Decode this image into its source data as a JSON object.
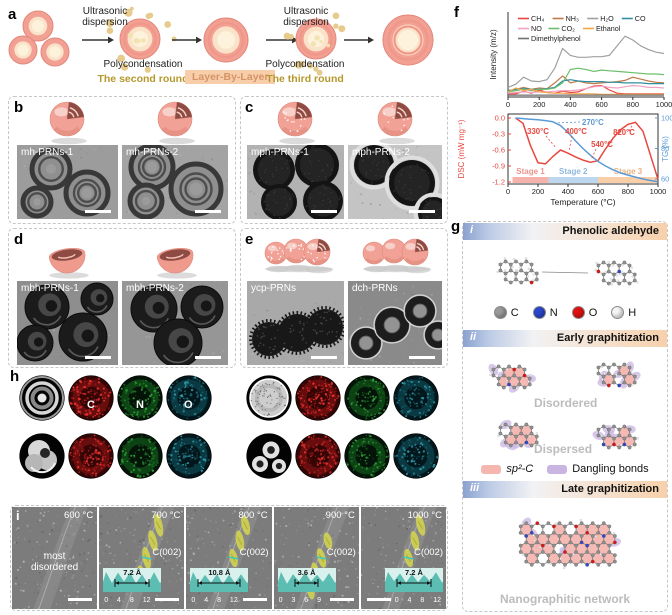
{
  "panels": {
    "a": {
      "label": "a",
      "ultrasonic_1": "Ultrasonic dispersion",
      "polycondensation_1": "Polycondensation",
      "round_2": "The second round",
      "layer_by_layer": "Layer-By-Layer",
      "ultrasonic_2": "Ultrasonic dispersion",
      "polycondensation_2": "Polycondensation",
      "round_3": "The third round"
    },
    "b": {
      "label": "b",
      "images": [
        "mh-PRNs-1",
        "mh-PRNs-2"
      ]
    },
    "c": {
      "label": "c",
      "images": [
        "mph-PRNs-1",
        "mph-PRNs-2"
      ]
    },
    "d": {
      "label": "d",
      "images": [
        "mbh-PRNs-1",
        "mbh-PRNs-2"
      ]
    },
    "e": {
      "label": "e",
      "images": [
        "ycp-PRNs",
        "dch-PRNs"
      ]
    },
    "f": {
      "label": "f"
    },
    "g": {
      "label": "g",
      "sections": [
        {
          "num": "i",
          "title": "Phenolic aldehyde"
        },
        {
          "num": "ii",
          "title": "Early graphitization"
        },
        {
          "num": "iii",
          "title": "Late graphitization"
        }
      ],
      "atoms": [
        {
          "symbol": "C",
          "color": "#9a9a9a"
        },
        {
          "symbol": "N",
          "color": "#2a46cc"
        },
        {
          "symbol": "O",
          "color": "#e01212"
        },
        {
          "symbol": "H",
          "color": "#f5f5f5"
        }
      ],
      "disordered_label": "Disordered",
      "dispersed_label": "Dispersed",
      "sp2_label": "sp²-C",
      "sp2_color": "#f6b6b0",
      "dangling_label": "Dangling bonds",
      "dangling_color": "#c9b5e2",
      "network_label": "Nanographitic network"
    },
    "h": {
      "label": "h",
      "element_labels": [
        "C",
        "N",
        "O"
      ]
    },
    "i": {
      "label": "i",
      "frames": [
        {
          "temp": "600 °C",
          "note": "most disordered"
        },
        {
          "temp": "700 °C",
          "plane": "C(002)",
          "inset_value": "7.2 Å",
          "inset_ticks": "0 4 8 12"
        },
        {
          "temp": "800 °C",
          "plane": "C(002)",
          "inset_value": "10.8 Å",
          "inset_ticks": "0 4 8 12"
        },
        {
          "temp": "900 °C",
          "plane": "C(002)",
          "inset_value": "3.6 Å",
          "inset_ticks": "0 3 6 9"
        },
        {
          "temp": "1000 °C",
          "plane": "C(002)",
          "inset_value": "7.2 Å",
          "inset_ticks": "0 4 8 12"
        }
      ]
    }
  },
  "chart_data": [
    {
      "id": "evolved-gas",
      "type": "line",
      "title": "",
      "xlabel": "",
      "ylabel": "Intensity (m/z)",
      "xlim": [
        0,
        1000
      ],
      "xticks": [
        0,
        200,
        400,
        600,
        800,
        1000
      ],
      "legend_rows": [
        [
          "CH₄",
          "NH₃",
          "H₂O",
          "CO"
        ],
        [
          "NO",
          "CO₂",
          "Ethanol"
        ],
        [
          "Dimethylphenol"
        ]
      ],
      "x": [
        0,
        50,
        100,
        150,
        200,
        250,
        300,
        350,
        400,
        450,
        500,
        550,
        600,
        650,
        700,
        750,
        800,
        850,
        900,
        950,
        1000
      ],
      "series": [
        {
          "name": "CH₄",
          "color": "#e8473f",
          "values": [
            0.05,
            0.05,
            0.09,
            0.06,
            0.11,
            0.07,
            0.06,
            0.09,
            0.07,
            0.08,
            0.13,
            0.17,
            0.18,
            0.11,
            0.06,
            0.05,
            0.05,
            0.05,
            0.05,
            0.05,
            0.05
          ]
        },
        {
          "name": "NH₃",
          "color": "#c07848",
          "values": [
            0.1,
            0.12,
            0.15,
            0.12,
            0.14,
            0.13,
            0.22,
            0.33,
            0.22,
            0.25,
            0.22,
            0.21,
            0.22,
            0.23,
            0.24,
            0.26,
            0.31,
            0.28,
            0.25,
            0.23,
            0.22
          ]
        },
        {
          "name": "H₂O",
          "color": "#a0a0a0",
          "values": [
            0.15,
            0.2,
            0.31,
            0.25,
            0.24,
            0.27,
            0.45,
            0.76,
            0.65,
            0.62,
            0.62,
            0.63,
            0.63,
            0.65,
            0.8,
            0.95,
            0.89,
            0.8,
            0.74,
            0.7,
            0.68
          ]
        },
        {
          "name": "CO",
          "color": "#2f8fa0",
          "values": [
            0.1,
            0.12,
            0.13,
            0.12,
            0.12,
            0.13,
            0.15,
            0.25,
            0.27,
            0.25,
            0.24,
            0.24,
            0.24,
            0.23,
            0.23,
            0.22,
            0.22,
            0.22,
            0.21,
            0.21,
            0.21
          ]
        },
        {
          "name": "NO",
          "color": "#f2a3c5",
          "values": [
            0.06,
            0.07,
            0.08,
            0.07,
            0.08,
            0.08,
            0.09,
            0.1,
            0.1,
            0.11,
            0.13,
            0.16,
            0.17,
            0.15,
            0.14,
            0.16,
            0.18,
            0.17,
            0.15,
            0.15,
            0.14
          ]
        },
        {
          "name": "CO₂",
          "color": "#6cbf6c",
          "values": [
            0.08,
            0.1,
            0.12,
            0.1,
            0.12,
            0.12,
            0.14,
            0.22,
            0.43,
            0.45,
            0.43,
            0.4,
            0.42,
            0.41,
            0.4,
            0.39,
            0.38,
            0.37,
            0.36,
            0.36,
            0.35
          ]
        },
        {
          "name": "Ethanol",
          "color": "#f5a54a",
          "values": [
            0.08,
            0.14,
            0.1,
            0.12,
            0.08,
            0.07,
            0.06,
            0.06,
            0.05,
            0.05,
            0.05,
            0.05,
            0.04,
            0.04,
            0.04,
            0.04,
            0.04,
            0.04,
            0.04,
            0.04,
            0.04
          ]
        },
        {
          "name": "Dimethylphenol",
          "color": "#707070",
          "values": [
            0.03,
            0.03,
            0.03,
            0.03,
            0.03,
            0.03,
            0.03,
            0.03,
            0.03,
            0.03,
            0.03,
            0.03,
            0.03,
            0.03,
            0.03,
            0.03,
            0.03,
            0.03,
            0.03,
            0.03,
            0.03
          ]
        }
      ]
    },
    {
      "id": "dsc-tg",
      "type": "line",
      "xlabel": "Temperature (°C)",
      "ylabel_left": "DSC (mW mg⁻¹)",
      "ylabel_right": "TG (%)",
      "dsc_color": "#e8473f",
      "tg_color": "#5b9bd5",
      "xticks": [
        0,
        200,
        400,
        600,
        800,
        1000
      ],
      "yticks_left": [
        "0.0",
        "-0.3",
        "-0.6",
        "-0.9",
        "-1.2"
      ],
      "yticks_right": [
        "100",
        "80",
        "60"
      ],
      "annotations": [
        {
          "text": "270°C",
          "color": "#5b9bd5"
        },
        {
          "text": "330°C",
          "color": "#e8473f"
        },
        {
          "text": "400°C",
          "color": "#e8473f"
        },
        {
          "text": "540°C",
          "color": "#e8473f"
        },
        {
          "text": "820°C",
          "color": "#e8473f"
        }
      ],
      "stages": [
        {
          "label": "Stage 1",
          "x0": 30,
          "x1": 270,
          "color": "#f6b3ae",
          "text_color": "#ec938c"
        },
        {
          "label": "Stage 2",
          "x0": 270,
          "x1": 600,
          "color": "#bdd7ee",
          "text_color": "#8fb8dd"
        },
        {
          "label": "Stage 3",
          "x0": 600,
          "x1": 1000,
          "color": "#f8cfa8",
          "text_color": "#eab27e"
        }
      ],
      "dsc": {
        "x": [
          50,
          100,
          150,
          200,
          250,
          300,
          350,
          400,
          450,
          500,
          550,
          600,
          650,
          700,
          750,
          800,
          850,
          900,
          950,
          1000
        ],
        "values": [
          0.0,
          -0.1,
          -0.52,
          -0.84,
          -0.86,
          -0.72,
          -0.6,
          -0.66,
          -0.73,
          -0.79,
          -0.83,
          -0.8,
          -0.58,
          -0.38,
          -0.22,
          -0.12,
          -0.08,
          -0.25,
          -0.7,
          -1.15
        ]
      },
      "tg": {
        "x": [
          50,
          100,
          150,
          200,
          250,
          300,
          350,
          400,
          450,
          500,
          550,
          600,
          650,
          700,
          750,
          800,
          850,
          900,
          950,
          1000
        ],
        "values": [
          100,
          99.6,
          99.2,
          98.8,
          98.3,
          97.5,
          95.0,
          90.5,
          85.0,
          80.0,
          75.5,
          71.5,
          68.5,
          66.0,
          64.0,
          62.5,
          61.2,
          60.0,
          59.0,
          58.2
        ]
      }
    }
  ]
}
